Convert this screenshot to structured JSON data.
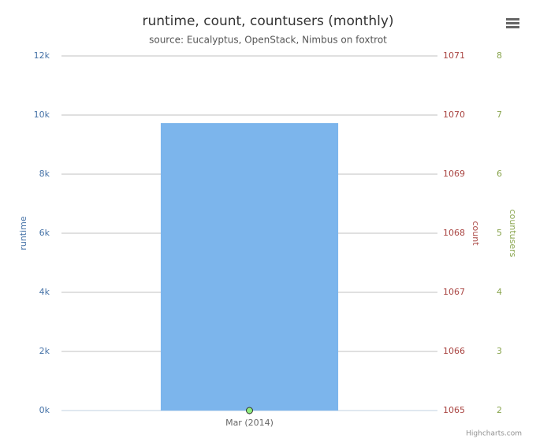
{
  "chart_data": {
    "type": "bar",
    "title": "runtime, count, countusers (monthly)",
    "subtitle": "source: Eucalyptus, OpenStack, Nimbus on foxtrot",
    "categories": [
      "Mar (2014)"
    ],
    "series": [
      {
        "type": "bar",
        "color": "#7cb5ec",
        "values": [
          9730
        ]
      },
      {
        "type": "line",
        "color": "#90ed7d",
        "values": [
          2
        ],
        "axis": "y3"
      }
    ],
    "ylabel": "runtime",
    "y2label": "count",
    "y3label": "countusers",
    "ylim": [
      0,
      12000
    ],
    "yticks": [
      {
        "value": 0,
        "label": "0k"
      },
      {
        "value": 2000,
        "label": "2k"
      },
      {
        "value": 4000,
        "label": "4k"
      },
      {
        "value": 6000,
        "label": "6k"
      },
      {
        "value": 8000,
        "label": "8k"
      },
      {
        "value": 10000,
        "label": "10k"
      },
      {
        "value": 12000,
        "label": "12k"
      }
    ],
    "y2lim": [
      1065,
      1071
    ],
    "y2ticks": [
      1065,
      1066,
      1067,
      1068,
      1069,
      1070,
      1071
    ],
    "y3lim": [
      2,
      8
    ],
    "y3ticks": [
      2,
      3,
      4,
      5,
      6,
      7,
      8
    ],
    "grid": true,
    "credits": "Highcharts.com"
  }
}
